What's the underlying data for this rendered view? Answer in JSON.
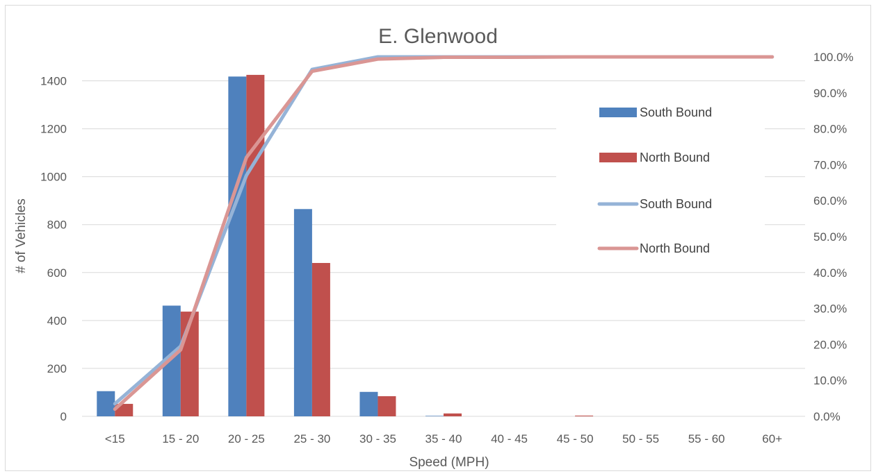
{
  "chart_data": {
    "type": "bar",
    "title": "E. Glenwood",
    "xlabel": "Speed (MPH)",
    "ylabel": "# of Vehicles",
    "categories": [
      "<15",
      "15 - 20",
      "20 - 25",
      "25 - 30",
      "30 - 35",
      "35 - 40",
      "40 - 45",
      "45 - 50",
      "50 - 55",
      "55 - 60",
      "60+"
    ],
    "ylim": [
      0,
      1500
    ],
    "yticks": [
      0,
      200,
      400,
      600,
      800,
      1000,
      1200,
      1400
    ],
    "y2lim": [
      0,
      100
    ],
    "y2ticks": [
      "0.0%",
      "10.0%",
      "20.0%",
      "30.0%",
      "40.0%",
      "50.0%",
      "60.0%",
      "70.0%",
      "80.0%",
      "90.0%",
      "100.0%"
    ],
    "legend_position": "right",
    "grid": true,
    "bar_series": [
      {
        "name": "South Bound",
        "color": "#4f81bd",
        "values": [
          105,
          462,
          1418,
          865,
          102,
          2,
          0,
          0,
          0,
          0,
          0
        ]
      },
      {
        "name": "North Bound",
        "color": "#c0504d",
        "values": [
          52,
          437,
          1425,
          640,
          84,
          12,
          0,
          3,
          0,
          0,
          0
        ]
      }
    ],
    "line_series": [
      {
        "name": "South Bound",
        "color": "#95b3d7",
        "values": [
          3.5,
          19.5,
          67.0,
          96.5,
          100.0,
          100.0,
          100.0,
          100.0,
          100.0,
          100.0,
          100.0
        ]
      },
      {
        "name": "North Bound",
        "color": "#da9694",
        "values": [
          2.0,
          18.5,
          72.0,
          96.0,
          99.4,
          99.9,
          99.9,
          100.0,
          100.0,
          100.0,
          100.0
        ]
      }
    ]
  }
}
